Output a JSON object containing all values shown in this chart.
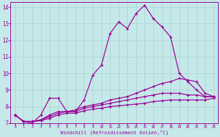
{
  "xlabel": "Windchill (Refroidissement éolien,°C)",
  "xlim": [
    -0.5,
    23.5
  ],
  "ylim": [
    7,
    14.3
  ],
  "yticks": [
    7,
    8,
    9,
    10,
    11,
    12,
    13,
    14
  ],
  "xticks": [
    0,
    1,
    2,
    3,
    4,
    5,
    6,
    7,
    8,
    9,
    10,
    11,
    12,
    13,
    14,
    15,
    16,
    17,
    18,
    19,
    20,
    21,
    22,
    23
  ],
  "bg_color": "#c5e8e8",
  "line_color": "#990099",
  "grid_color": "#aad0d0",
  "series": [
    [
      7.5,
      7.1,
      7.0,
      7.5,
      8.5,
      8.5,
      7.7,
      7.7,
      8.4,
      9.9,
      10.5,
      12.4,
      13.1,
      12.7,
      13.6,
      14.1,
      13.3,
      12.8,
      12.2,
      10.0,
      9.5,
      9.0,
      8.6,
      8.6
    ],
    [
      7.5,
      7.1,
      7.1,
      7.2,
      7.4,
      7.6,
      7.7,
      7.8,
      8.0,
      8.1,
      8.2,
      8.4,
      8.5,
      8.6,
      8.8,
      9.0,
      9.2,
      9.4,
      9.5,
      9.7,
      9.6,
      9.5,
      8.8,
      8.6
    ],
    [
      7.5,
      7.1,
      7.1,
      7.2,
      7.5,
      7.7,
      7.7,
      7.7,
      7.9,
      8.0,
      8.1,
      8.2,
      8.3,
      8.4,
      8.5,
      8.6,
      8.7,
      8.8,
      8.8,
      8.8,
      8.7,
      8.7,
      8.6,
      8.6
    ],
    [
      7.5,
      7.1,
      7.1,
      7.15,
      7.3,
      7.5,
      7.6,
      7.6,
      7.75,
      7.85,
      7.9,
      8.0,
      8.05,
      8.1,
      8.15,
      8.2,
      8.3,
      8.35,
      8.4,
      8.4,
      8.4,
      8.4,
      8.4,
      8.5
    ]
  ]
}
